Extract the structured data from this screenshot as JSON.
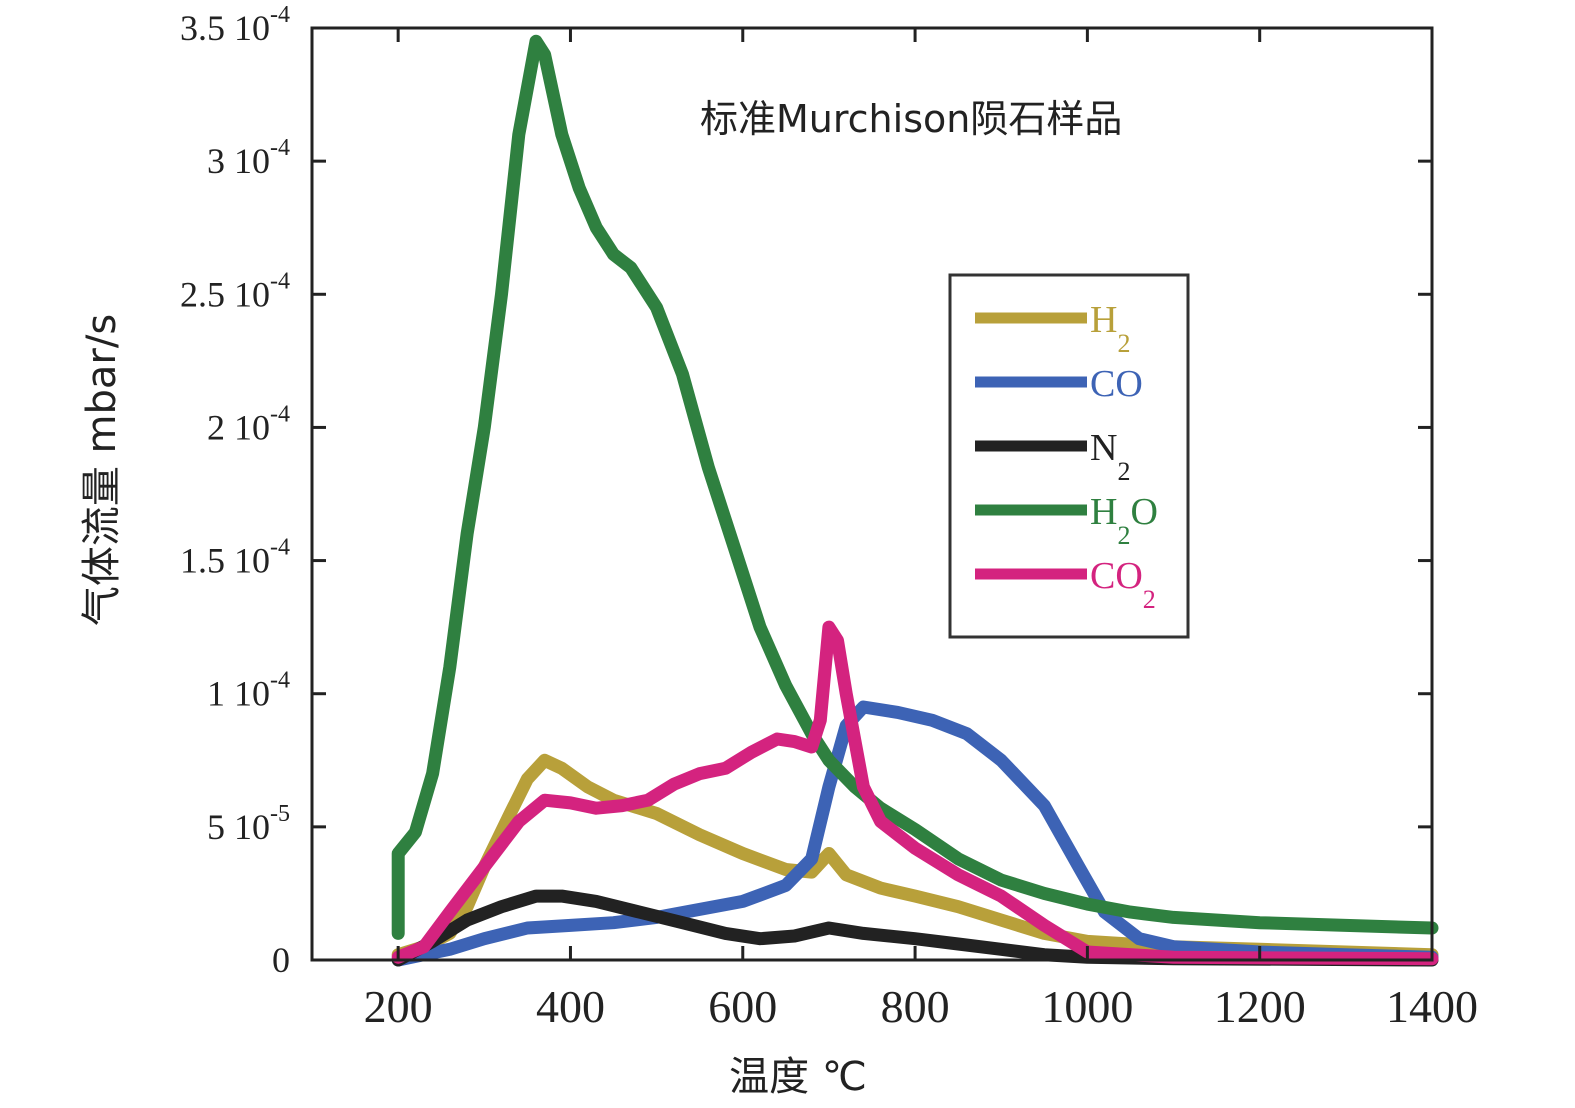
{
  "chart_data": {
    "type": "line",
    "title": "标准Murchison陨石样品",
    "xlabel": "温度 ℃",
    "ylabel": "气体流量 mbar/s",
    "xlim": [
      100,
      1400
    ],
    "ylim": [
      0,
      0.00035
    ],
    "x_ticks": [
      200,
      400,
      600,
      800,
      1000,
      1200,
      1400
    ],
    "x_tick_labels": [
      "200",
      "400",
      "600",
      "800",
      "1000",
      "1200",
      "1400"
    ],
    "y_ticks": [
      0,
      5e-05,
      0.0001,
      0.00015,
      0.0002,
      0.00025,
      0.0003,
      0.00035
    ],
    "y_tick_labels": [
      {
        "mantissa": "0",
        "exp": ""
      },
      {
        "mantissa": "5 10",
        "exp": "-5"
      },
      {
        "mantissa": "1 10",
        "exp": "-4"
      },
      {
        "mantissa": "1.5 10",
        "exp": "-4"
      },
      {
        "mantissa": "2 10",
        "exp": "-4"
      },
      {
        "mantissa": "2.5 10",
        "exp": "-4"
      },
      {
        "mantissa": "3 10",
        "exp": "-4"
      },
      {
        "mantissa": "3.5 10",
        "exp": "-4"
      }
    ],
    "grid": false,
    "legend_position": "right",
    "series": [
      {
        "name": "H2",
        "label": "H",
        "sub": "2",
        "suffix": "",
        "color": "#b8a03a",
        "points": [
          [
            200,
            2e-06
          ],
          [
            230,
            5e-06
          ],
          [
            260,
            1e-05
          ],
          [
            280,
            2e-05
          ],
          [
            300,
            3.5e-05
          ],
          [
            330,
            5.5e-05
          ],
          [
            350,
            6.8e-05
          ],
          [
            370,
            7.5e-05
          ],
          [
            390,
            7.2e-05
          ],
          [
            420,
            6.5e-05
          ],
          [
            450,
            6e-05
          ],
          [
            500,
            5.5e-05
          ],
          [
            550,
            4.7e-05
          ],
          [
            600,
            4e-05
          ],
          [
            650,
            3.4e-05
          ],
          [
            680,
            3.3e-05
          ],
          [
            700,
            4e-05
          ],
          [
            720,
            3.2e-05
          ],
          [
            760,
            2.7e-05
          ],
          [
            800,
            2.4e-05
          ],
          [
            850,
            2e-05
          ],
          [
            900,
            1.5e-05
          ],
          [
            950,
            1e-05
          ],
          [
            1000,
            7e-06
          ],
          [
            1100,
            5e-06
          ],
          [
            1200,
            4e-06
          ],
          [
            1300,
            3e-06
          ],
          [
            1400,
            2e-06
          ]
        ]
      },
      {
        "name": "CO",
        "label": "CO",
        "sub": "",
        "suffix": "",
        "color": "#3d63b5",
        "points": [
          [
            200,
            0
          ],
          [
            260,
            4e-06
          ],
          [
            300,
            8e-06
          ],
          [
            350,
            1.2e-05
          ],
          [
            400,
            1.3e-05
          ],
          [
            450,
            1.4e-05
          ],
          [
            500,
            1.6e-05
          ],
          [
            550,
            1.9e-05
          ],
          [
            600,
            2.2e-05
          ],
          [
            650,
            2.8e-05
          ],
          [
            680,
            3.8e-05
          ],
          [
            700,
            6.5e-05
          ],
          [
            720,
            8.8e-05
          ],
          [
            740,
            9.5e-05
          ],
          [
            780,
            9.3e-05
          ],
          [
            820,
            9e-05
          ],
          [
            860,
            8.5e-05
          ],
          [
            900,
            7.5e-05
          ],
          [
            950,
            5.8e-05
          ],
          [
            990,
            3.5e-05
          ],
          [
            1020,
            1.8e-05
          ],
          [
            1060,
            8e-06
          ],
          [
            1100,
            5e-06
          ],
          [
            1200,
            3e-06
          ],
          [
            1300,
            2e-06
          ],
          [
            1400,
            1e-06
          ]
        ]
      },
      {
        "name": "N2",
        "label": "N",
        "sub": "2",
        "suffix": "",
        "color": "#222222",
        "points": [
          [
            200,
            0
          ],
          [
            240,
            7e-06
          ],
          [
            280,
            1.5e-05
          ],
          [
            320,
            2e-05
          ],
          [
            360,
            2.4e-05
          ],
          [
            390,
            2.4e-05
          ],
          [
            430,
            2.2e-05
          ],
          [
            480,
            1.8e-05
          ],
          [
            530,
            1.4e-05
          ],
          [
            580,
            1e-05
          ],
          [
            620,
            8e-06
          ],
          [
            660,
            9e-06
          ],
          [
            700,
            1.2e-05
          ],
          [
            740,
            1e-05
          ],
          [
            800,
            8e-06
          ],
          [
            850,
            6e-06
          ],
          [
            900,
            4e-06
          ],
          [
            950,
            2e-06
          ],
          [
            1000,
            1e-06
          ],
          [
            1100,
            5e-07
          ],
          [
            1400,
            0
          ]
        ]
      },
      {
        "name": "H2O",
        "label": "H",
        "sub": "2",
        "suffix": "O",
        "color": "#2f8040",
        "points": [
          [
            200,
            1e-05
          ],
          [
            200,
            4e-05
          ],
          [
            220,
            4.8e-05
          ],
          [
            240,
            7e-05
          ],
          [
            260,
            0.00011
          ],
          [
            280,
            0.00016
          ],
          [
            300,
            0.0002
          ],
          [
            320,
            0.00025
          ],
          [
            340,
            0.00031
          ],
          [
            360,
            0.000345
          ],
          [
            370,
            0.00034
          ],
          [
            390,
            0.00031
          ],
          [
            410,
            0.00029
          ],
          [
            430,
            0.000275
          ],
          [
            450,
            0.000265
          ],
          [
            470,
            0.00026
          ],
          [
            500,
            0.000245
          ],
          [
            530,
            0.00022
          ],
          [
            560,
            0.000185
          ],
          [
            590,
            0.000155
          ],
          [
            620,
            0.000125
          ],
          [
            650,
            0.000103
          ],
          [
            680,
            8.5e-05
          ],
          [
            700,
            7.5e-05
          ],
          [
            730,
            6.5e-05
          ],
          [
            760,
            5.7e-05
          ],
          [
            800,
            4.9e-05
          ],
          [
            850,
            3.8e-05
          ],
          [
            900,
            3e-05
          ],
          [
            950,
            2.5e-05
          ],
          [
            1000,
            2.1e-05
          ],
          [
            1050,
            1.8e-05
          ],
          [
            1100,
            1.6e-05
          ],
          [
            1200,
            1.4e-05
          ],
          [
            1300,
            1.3e-05
          ],
          [
            1400,
            1.2e-05
          ]
        ]
      },
      {
        "name": "CO2",
        "label": "CO",
        "sub": "2",
        "suffix": "",
        "color": "#d4237f",
        "points": [
          [
            200,
            1e-06
          ],
          [
            230,
            5e-06
          ],
          [
            260,
            1.8e-05
          ],
          [
            300,
            3.5e-05
          ],
          [
            340,
            5.2e-05
          ],
          [
            370,
            6e-05
          ],
          [
            400,
            5.9e-05
          ],
          [
            430,
            5.7e-05
          ],
          [
            460,
            5.8e-05
          ],
          [
            490,
            6e-05
          ],
          [
            520,
            6.6e-05
          ],
          [
            550,
            7e-05
          ],
          [
            580,
            7.2e-05
          ],
          [
            610,
            7.8e-05
          ],
          [
            640,
            8.3e-05
          ],
          [
            660,
            8.2e-05
          ],
          [
            680,
            8e-05
          ],
          [
            690,
            9e-05
          ],
          [
            700,
            0.000125
          ],
          [
            710,
            0.00012
          ],
          [
            720,
            0.0001
          ],
          [
            740,
            6.5e-05
          ],
          [
            760,
            5.2e-05
          ],
          [
            800,
            4.2e-05
          ],
          [
            850,
            3.2e-05
          ],
          [
            900,
            2.4e-05
          ],
          [
            950,
            1.3e-05
          ],
          [
            1000,
            3e-06
          ],
          [
            1100,
            1e-06
          ],
          [
            1400,
            5e-07
          ]
        ]
      }
    ]
  }
}
